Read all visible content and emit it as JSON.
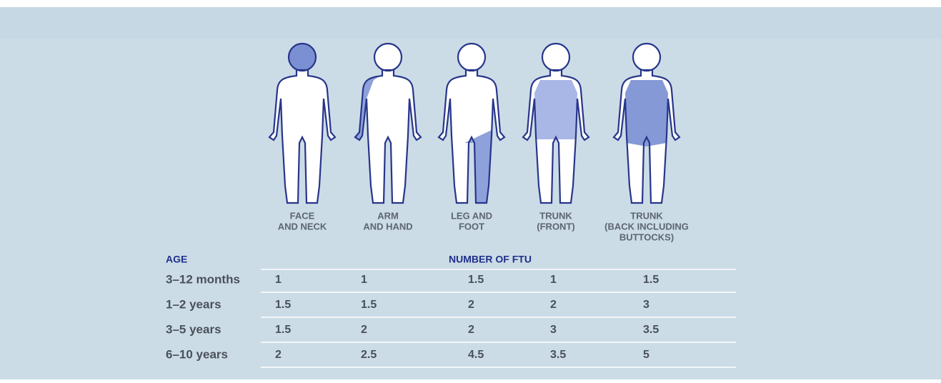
{
  "columns": [
    {
      "lines": [
        "FACE",
        "AND NECK"
      ]
    },
    {
      "lines": [
        "ARM",
        "AND HAND"
      ]
    },
    {
      "lines": [
        "LEG AND",
        "FOOT"
      ]
    },
    {
      "lines": [
        "TRUNK",
        "(FRONT)"
      ]
    },
    {
      "lines": [
        "TRUNK",
        "(BACK INCLUDING",
        "BUTTOCKS)"
      ]
    }
  ],
  "table": {
    "header": {
      "age": "AGE",
      "ftu": "NUMBER OF FTU"
    },
    "rows": [
      {
        "age": "3–12 months",
        "values": [
          1,
          1,
          1.5,
          1,
          1.5
        ]
      },
      {
        "age": "1–2 years",
        "values": [
          1.5,
          1.5,
          2,
          2,
          3
        ]
      },
      {
        "age": "3–5 years",
        "values": [
          1.5,
          2,
          2,
          3,
          3.5
        ]
      },
      {
        "age": "6–10 years",
        "values": [
          2,
          2.5,
          4.5,
          3.5,
          5
        ]
      }
    ]
  }
}
